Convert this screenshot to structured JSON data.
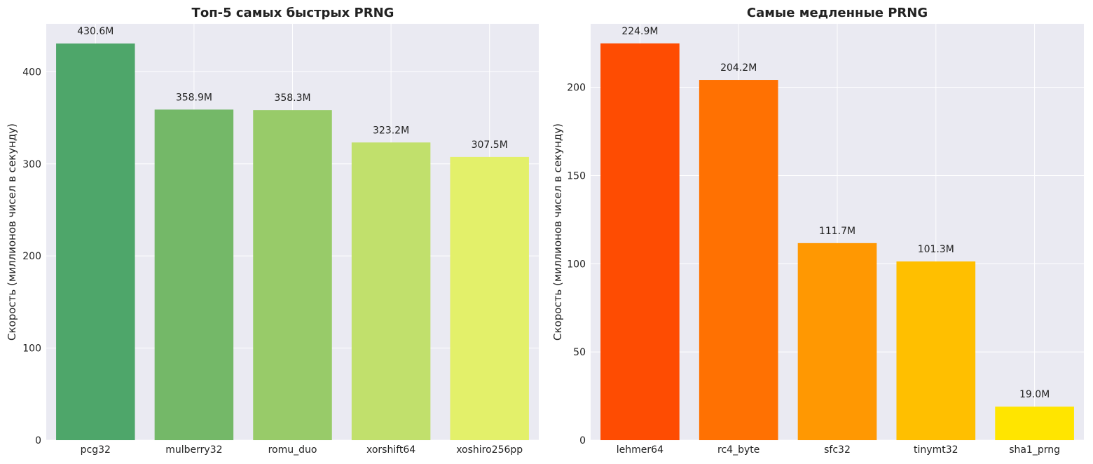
{
  "chart_data": [
    {
      "type": "bar",
      "title": "Топ-5 самых быстрых PRNG",
      "xlabel": "",
      "ylabel": "Скорость (миллионов чисел в секунду)",
      "categories": [
        "pcg32",
        "mulberry32",
        "romu_duo",
        "xorshift64",
        "xoshiro256pp"
      ],
      "values": [
        430.6,
        358.9,
        358.3,
        323.2,
        307.5
      ],
      "value_labels": [
        "430.6M",
        "358.9M",
        "358.3M",
        "323.2M",
        "307.5M"
      ],
      "colors": [
        "#4ea66a",
        "#74b868",
        "#98cb69",
        "#c1e06c",
        "#e3f06a"
      ],
      "ylim": [
        0,
        452
      ],
      "yticks": [
        0,
        100,
        200,
        300,
        400
      ],
      "grid": true
    },
    {
      "type": "bar",
      "title": "Самые медленные PRNG",
      "xlabel": "",
      "ylabel": "Скорость (миллионов чисел в секунду)",
      "categories": [
        "lehmer64",
        "rc4_byte",
        "sfc32",
        "tinymt32",
        "sha1_prng"
      ],
      "values": [
        224.9,
        204.2,
        111.7,
        101.3,
        19.0
      ],
      "value_labels": [
        "224.9M",
        "204.2M",
        "111.7M",
        "101.3M",
        "19.0M"
      ],
      "colors": [
        "#fe4c02",
        "#ff7102",
        "#ff9802",
        "#ffbf00",
        "#ffe500"
      ],
      "ylim": [
        0,
        236
      ],
      "yticks": [
        0,
        50,
        100,
        150,
        200
      ],
      "grid": true
    }
  ]
}
